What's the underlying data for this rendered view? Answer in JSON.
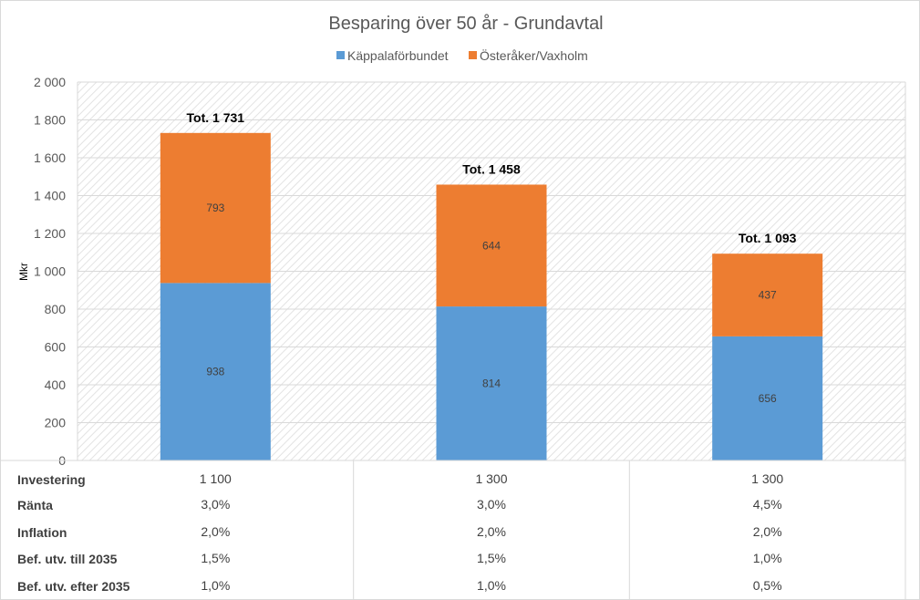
{
  "chart_data": {
    "type": "bar",
    "stacked": true,
    "title": "Besparing över 50 år - Grundavtal",
    "ylabel": "Mkr",
    "xlabel": "",
    "ylim": [
      0,
      2000
    ],
    "yticks": [
      0,
      200,
      400,
      600,
      800,
      1000,
      1200,
      1400,
      1600,
      1800,
      2000
    ],
    "ytick_labels": [
      "0",
      "200",
      "400",
      "600",
      "800",
      "1 000",
      "1 200",
      "1 400",
      "1 600",
      "1 800",
      "2 000"
    ],
    "grid": true,
    "legend_position": "top",
    "categories": [
      "",
      "",
      ""
    ],
    "series": [
      {
        "name": "Käppalaförbundet",
        "color": "#5b9bd5",
        "values": [
          938,
          814,
          656
        ],
        "labels": [
          "938",
          "814",
          "656"
        ]
      },
      {
        "name": "Österåker/Vaxholm",
        "color": "#ed7d31",
        "values": [
          793,
          644,
          437
        ],
        "labels": [
          "793",
          "644",
          "437"
        ]
      }
    ],
    "totals": [
      1731,
      1458,
      1093
    ],
    "total_labels": [
      "Tot. 1 731",
      "Tot. 1 458",
      "Tot. 1 093"
    ],
    "table": [
      {
        "label": "Investering",
        "values": [
          "1 100",
          "1 300",
          "1 300"
        ]
      },
      {
        "label": "Ränta",
        "values": [
          "3,0%",
          "3,0%",
          "4,5%"
        ]
      },
      {
        "label": "Inflation",
        "values": [
          "2,0%",
          "2,0%",
          "2,0%"
        ]
      },
      {
        "label": "Bef. utv. till 2035",
        "values": [
          "1,5%",
          "1,5%",
          "1,0%"
        ]
      },
      {
        "label": "Bef. utv. efter 2035",
        "values": [
          "1,0%",
          "1,0%",
          "0,5%"
        ]
      }
    ]
  }
}
